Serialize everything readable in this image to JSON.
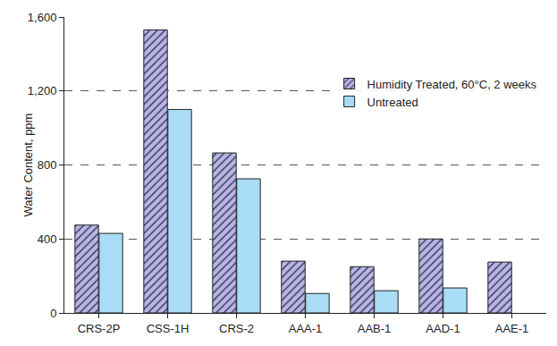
{
  "chart_data": {
    "type": "bar",
    "y_label": "Water Content, ppm",
    "categories": [
      "CRS-2P",
      "CSS-1H",
      "CRS-2",
      "AAA-1",
      "AAB-1",
      "AAD-1",
      "AAE-1"
    ],
    "series": [
      {
        "name": "Humidity Treated, 60°C, 2 weeks",
        "color": "#b9b6e0",
        "marker": "hatch",
        "values": [
          475,
          1530,
          865,
          280,
          250,
          400,
          275
        ]
      },
      {
        "name": "Untreated",
        "color": "#a9dcf5",
        "values": [
          430,
          1100,
          725,
          105,
          120,
          135,
          null
        ]
      }
    ],
    "ylim": [
      0,
      1600
    ],
    "yticks": [
      0,
      400,
      800,
      {
        "value": 1200,
        "label": "1,200"
      },
      {
        "value": 1600,
        "label": "1,600"
      }
    ],
    "grid": true,
    "legend": "upper right"
  }
}
